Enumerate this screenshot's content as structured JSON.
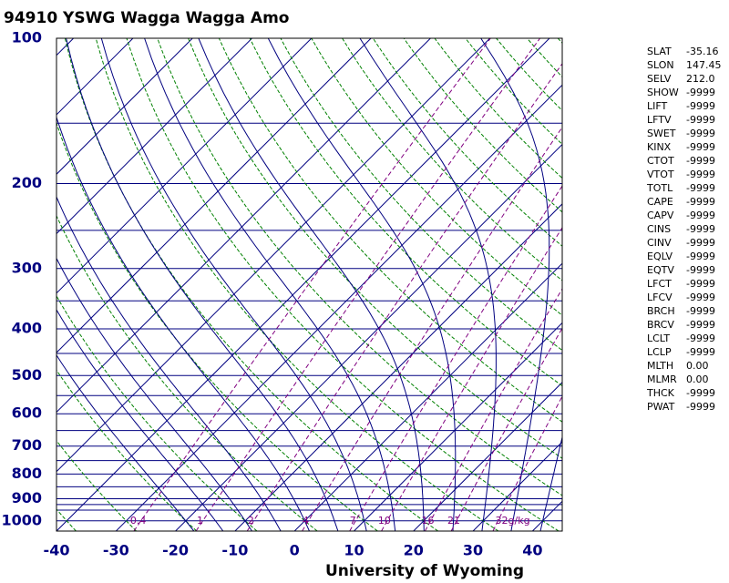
{
  "chart_data": {
    "type": "skewt",
    "title": "94910 YSWG Wagga Wagga Amo",
    "x_label": "University of Wyoming",
    "xlim": [
      -40,
      45
    ],
    "xticks": [
      -40,
      -30,
      -20,
      -10,
      0,
      10,
      20,
      30,
      40
    ],
    "ylim": [
      1050,
      100
    ],
    "y_log": true,
    "yticks": [
      100,
      200,
      300,
      400,
      500,
      600,
      700,
      800,
      900,
      1000
    ],
    "isobars": [
      100,
      150,
      200,
      250,
      300,
      350,
      400,
      450,
      500,
      550,
      600,
      650,
      700,
      750,
      800,
      850,
      900,
      925,
      950,
      1000,
      1050
    ],
    "mixing_ratios": [
      0.4,
      1,
      2,
      4,
      7,
      10,
      16,
      21,
      {
        "value": 32,
        "label": "32g/kg"
      }
    ],
    "colors": {
      "isobar": "#000080",
      "isotherm": "#000080",
      "dry_adiabat": "#008000",
      "moist_adiabat": "#000080",
      "mixing_ratio": "#800080",
      "tick_label": "#000080"
    }
  },
  "station_table": {
    "rows": [
      [
        "SLAT",
        "-35.16"
      ],
      [
        "SLON",
        "147.45"
      ],
      [
        "SELV",
        "212.0"
      ],
      [
        "SHOW",
        "-9999"
      ],
      [
        "LIFT",
        "-9999"
      ],
      [
        "LFTV",
        "-9999"
      ],
      [
        "SWET",
        "-9999"
      ],
      [
        "KINX",
        "-9999"
      ],
      [
        "CTOT",
        "-9999"
      ],
      [
        "VTOT",
        "-9999"
      ],
      [
        "TOTL",
        "-9999"
      ],
      [
        "CAPE",
        "-9999"
      ],
      [
        "CAPV",
        "-9999"
      ],
      [
        "CINS",
        "-9999"
      ],
      [
        "CINV",
        "-9999"
      ],
      [
        "EQLV",
        "-9999"
      ],
      [
        "EQTV",
        "-9999"
      ],
      [
        "LFCT",
        "-9999"
      ],
      [
        "LFCV",
        "-9999"
      ],
      [
        "BRCH",
        "-9999"
      ],
      [
        "BRCV",
        "-9999"
      ],
      [
        "LCLT",
        "-9999"
      ],
      [
        "LCLP",
        "-9999"
      ],
      [
        "MLTH",
        "0.00"
      ],
      [
        "MLMR",
        "0.00"
      ],
      [
        "THCK",
        "-9999"
      ],
      [
        "PWAT",
        "-9999"
      ]
    ]
  }
}
